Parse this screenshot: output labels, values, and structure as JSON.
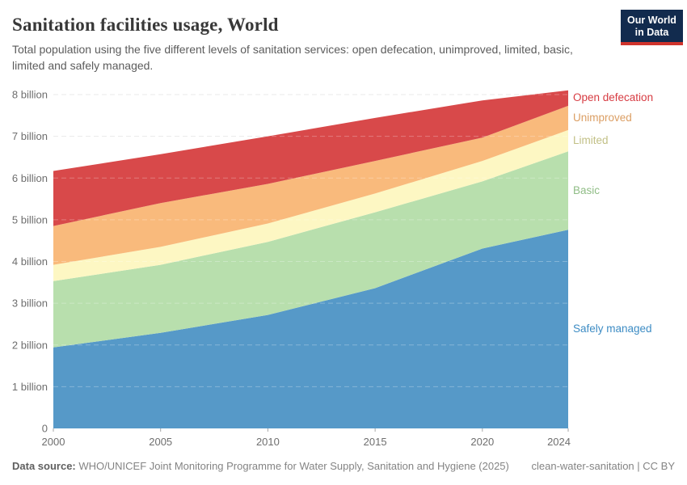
{
  "header": {
    "title": "Sanitation facilities usage, World",
    "subtitle": "Total population using the five different levels of sanitation services: open defecation, unimproved, limited, basic, limited and safely managed."
  },
  "logo": {
    "line1": "Our World",
    "line2": "in Data"
  },
  "chart_data": {
    "type": "area",
    "stacked": true,
    "title": "Sanitation facilities usage, World",
    "xlabel": "",
    "ylabel": "",
    "x": [
      2000,
      2005,
      2010,
      2015,
      2020,
      2024
    ],
    "xticks": [
      "2000",
      "2005",
      "2010",
      "2015",
      "2020",
      "2024"
    ],
    "yticks": [
      {
        "value": 0,
        "label": "0"
      },
      {
        "value": 1,
        "label": "1 billion"
      },
      {
        "value": 2,
        "label": "2 billion"
      },
      {
        "value": 3,
        "label": "3 billion"
      },
      {
        "value": 4,
        "label": "4 billion"
      },
      {
        "value": 5,
        "label": "5 billion"
      },
      {
        "value": 6,
        "label": "6 billion"
      },
      {
        "value": 7,
        "label": "7 billion"
      },
      {
        "value": 8,
        "label": "8 billion"
      }
    ],
    "ylim": [
      0,
      8.25
    ],
    "grid": "horizontal dashed",
    "legend_position": "right edge, aligned to band midpoints",
    "units": "billions of people",
    "series": [
      {
        "name": "Safely managed",
        "fill": "#5699c8",
        "label_color": "#3d8cc4",
        "values": [
          1.94,
          2.29,
          2.72,
          3.36,
          4.31,
          4.76
        ]
      },
      {
        "name": "Basic",
        "fill": "#b8dfad",
        "label_color": "#90bd86",
        "values": [
          1.59,
          1.63,
          1.75,
          1.82,
          1.61,
          1.88
        ]
      },
      {
        "name": "Limited",
        "fill": "#fdf7c3",
        "label_color": "#c2c086",
        "values": [
          0.39,
          0.43,
          0.44,
          0.45,
          0.49,
          0.51
        ]
      },
      {
        "name": "Unimproved",
        "fill": "#f9ba7c",
        "label_color": "#db9e63",
        "values": [
          0.93,
          1.05,
          0.95,
          0.78,
          0.56,
          0.58
        ]
      },
      {
        "name": "Open defecation",
        "fill": "#d8494a",
        "label_color": "#d73b42",
        "values": [
          1.32,
          1.17,
          1.14,
          1.03,
          0.89,
          0.37
        ]
      }
    ],
    "stack_totals": [
      6.17,
      6.57,
      7.0,
      7.44,
      7.86,
      8.1
    ],
    "colors": {
      "grid": "#e2e2e2",
      "grid_over_area": "rgba(255,255,255,0.28)",
      "axis_text": "#6e6e6e",
      "tick_mark": "#a6a6a6"
    }
  },
  "footer": {
    "source_label": "Data source:",
    "source_text": "WHO/UNICEF Joint Monitoring Programme for Water Supply, Sanitation and Hygiene (2025)",
    "attribution": "clean-water-sanitation | CC BY"
  }
}
